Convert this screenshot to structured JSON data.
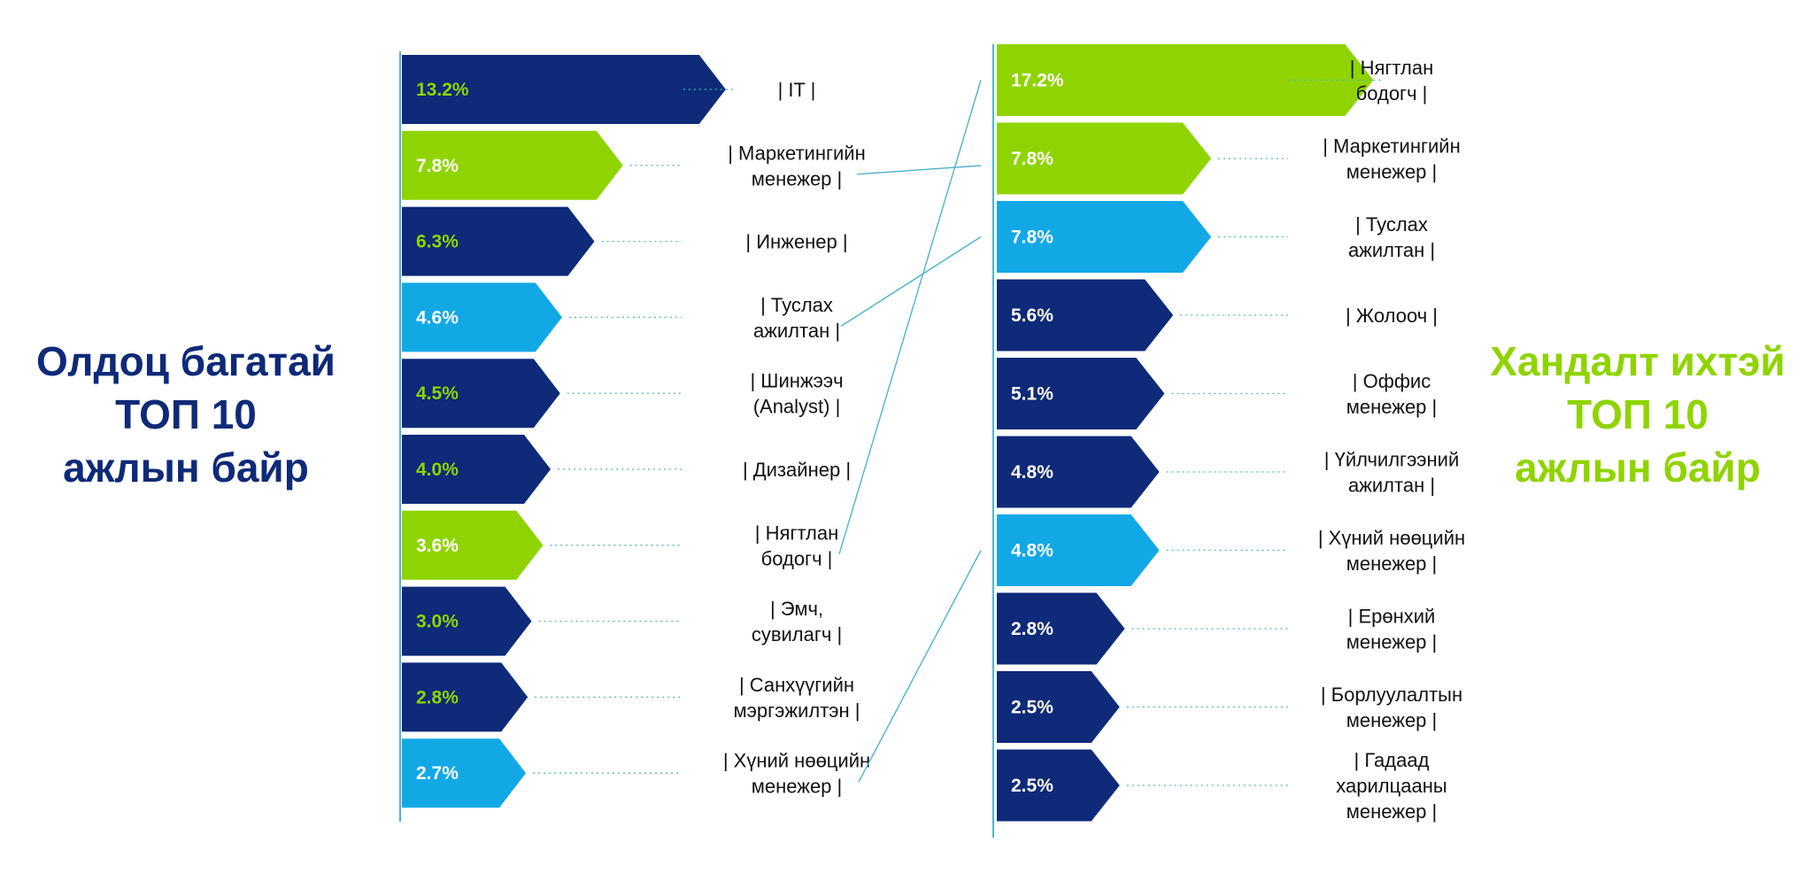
{
  "left_title": {
    "line1": "Олдоц багатай",
    "line2": "ТОП 10",
    "line3": "ажлын байр"
  },
  "right_title": {
    "line1": "Хандалт ихтэй",
    "line2": "ТОП 10",
    "line3": "ажлын байр"
  },
  "colors": {
    "navy": "#0e2a78",
    "green": "#8fd400",
    "cyan": "#12a8e6",
    "white": "#ffffff",
    "guide": "#4fb3cf"
  },
  "chart_data": [
    {
      "type": "bar",
      "title": "Олдоц багатай ТОП 10 ажлын байр",
      "orientation": "horizontal",
      "categories": [
        "| IT |",
        "| Маркетингийн менежер |",
        "| Инженер |",
        "| Туслах ажилтан |",
        "| Шинжээч (Analyst) |",
        "| Дизайнер |",
        "| Нягтлан бодогч |",
        "| Эмч, сувилагч |",
        "| Санхүүгийн мэргэжилтэн |",
        "| Хүний нөөцийн менежер |"
      ],
      "label_lines": [
        [
          "| IT |"
        ],
        [
          "| Маркетингийн",
          "менежер |"
        ],
        [
          "| Инженер |"
        ],
        [
          "| Туслах",
          "ажилтан |"
        ],
        [
          "| Шинжээч",
          "(Analyst) |"
        ],
        [
          "| Дизайнер |"
        ],
        [
          "| Нягтлан",
          "бодогч |"
        ],
        [
          "| Эмч,",
          "сувилагч |"
        ],
        [
          "| Санхүүгийн",
          "мэргэжилтэн |"
        ],
        [
          "| Хүний нөөцийн",
          "менежер |"
        ]
      ],
      "values": [
        13.2,
        7.8,
        6.3,
        4.6,
        4.5,
        4.0,
        3.6,
        3.0,
        2.8,
        2.7
      ],
      "value_labels": [
        "13.2%",
        "7.8%",
        "6.3%",
        "4.6%",
        "4.5%",
        "4.0%",
        "3.6%",
        "3.0%",
        "2.8%",
        "2.7%"
      ],
      "bar_colors": [
        "navy",
        "green",
        "navy",
        "cyan",
        "navy",
        "navy",
        "green",
        "navy",
        "navy",
        "cyan"
      ],
      "label_colors": [
        "green",
        "white",
        "green",
        "white",
        "green",
        "green",
        "white",
        "green",
        "green",
        "white"
      ]
    },
    {
      "type": "bar",
      "title": "Хандалт ихтэй ТОП 10 ажлын байр",
      "orientation": "horizontal",
      "categories": [
        "| Нягтлан бодогч |",
        "| Маркетингийн менежер |",
        "| Туслах ажилтан |",
        "| Жолооч |",
        "| Оффис менежер |",
        "| Үйлчилгээний ажилтан |",
        "| Хүний нөөцийн менежер |",
        "| Ерөнхий менежер |",
        "| Борлуулалтын менежер |",
        "| Гадаад харилцааны менежер |"
      ],
      "label_lines": [
        [
          "| Нягтлан",
          "бодогч |"
        ],
        [
          "| Маркетингийн",
          "менежер |"
        ],
        [
          "| Туслах",
          "ажилтан |"
        ],
        [
          "| Жолооч |"
        ],
        [
          "| Оффис",
          "менежер |"
        ],
        [
          "| Үйлчилгээний",
          "ажилтан |"
        ],
        [
          "| Хүний нөөцийн",
          "менежер |"
        ],
        [
          "| Ерөнхий",
          "менежер |"
        ],
        [
          "| Борлуулалтын",
          "менежер |"
        ],
        [
          "| Гадаад",
          "харилцааны",
          "менежер |"
        ]
      ],
      "values": [
        17.2,
        7.8,
        7.8,
        5.6,
        5.1,
        4.8,
        4.8,
        2.8,
        2.5,
        2.5
      ],
      "value_labels": [
        "17.2%",
        "7.8%",
        "7.8%",
        "5.6%",
        "5.1%",
        "4.8%",
        "4.8%",
        "2.8%",
        "2.5%",
        "2.5%"
      ],
      "bar_colors": [
        "green",
        "green",
        "cyan",
        "navy",
        "navy",
        "navy",
        "cyan",
        "navy",
        "navy",
        "navy"
      ],
      "label_colors": [
        "white",
        "white",
        "white",
        "white",
        "white",
        "white",
        "white",
        "white",
        "white",
        "white"
      ]
    }
  ],
  "links": [
    {
      "from": "| Маркетингийн менежер |",
      "to": "| Маркетингийн менежер |"
    },
    {
      "from": "| Туслах ажилтан |",
      "to": "| Туслах ажилтан |"
    },
    {
      "from": "| Нягтлан бодогч |",
      "to": "| Нягтлан бодогч |"
    },
    {
      "from": "| Хүний нөөцийн менежер |",
      "to": "| Хүний нөөцийн менежер |"
    }
  ]
}
